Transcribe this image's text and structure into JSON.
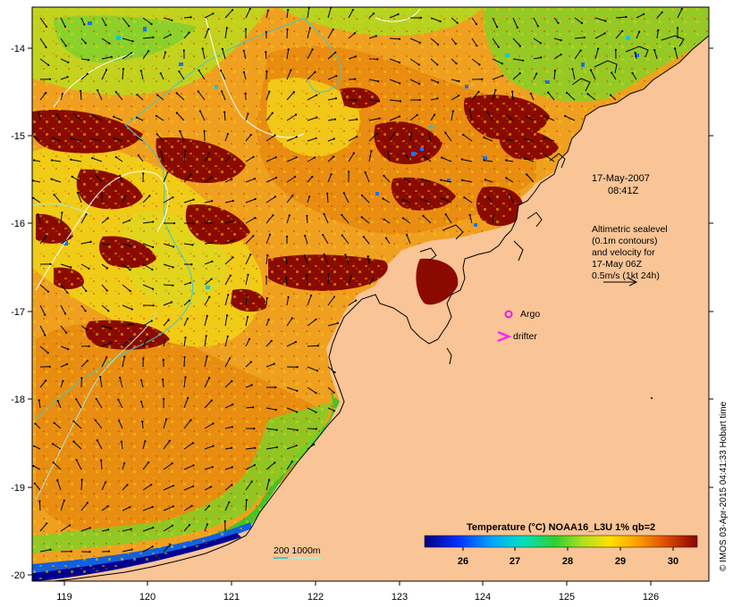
{
  "map": {
    "longitude_ticks": [
      "119",
      "120",
      "121",
      "122",
      "123",
      "124",
      "125",
      "126"
    ],
    "latitude_ticks": [
      "-14",
      "-15",
      "-16",
      "-17",
      "-18",
      "-19",
      "-20"
    ]
  },
  "annotations": {
    "date": "17-May-2007",
    "time": "08:41Z",
    "altimetry_lines": [
      "Altimetric sealevel",
      "(0.1m contours)",
      "and velocity for",
      "17-May 06Z",
      "0.5m/s (1kt 24h)"
    ],
    "argo_label": "Argo",
    "drifter_label": "drifter",
    "isobath_label": "200  1000m",
    "credit": "© IMOS 03-Apr-2015 04:41:33 Hobart time"
  },
  "colorbar": {
    "title": "Temperature (°C) NOAA16_L3U 1% qb=2",
    "ticks": [
      "26",
      "27",
      "28",
      "29",
      "30"
    ]
  },
  "colors": {
    "land": "#f9c496",
    "argo_marker": "#e020e0",
    "drifter_marker": "#ff22ff",
    "isobath_200": "#40c8c8",
    "isobath_1000": "#a8ecd8",
    "sealevel_contour": "#ffffff"
  }
}
